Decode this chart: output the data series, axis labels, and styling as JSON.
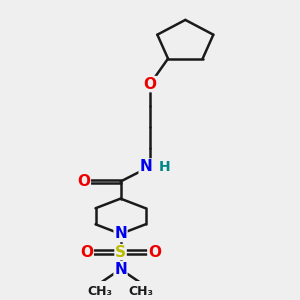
{
  "bg_color": "#efefef",
  "bond_color": "#1a1a1a",
  "bond_width": 1.8,
  "atom_colors": {
    "C": "#1a1a1a",
    "N": "#0000ee",
    "O": "#ee0000",
    "S": "#bbbb00",
    "H": "#008888"
  },
  "font_size_atom": 11,
  "font_size_methyl": 9
}
